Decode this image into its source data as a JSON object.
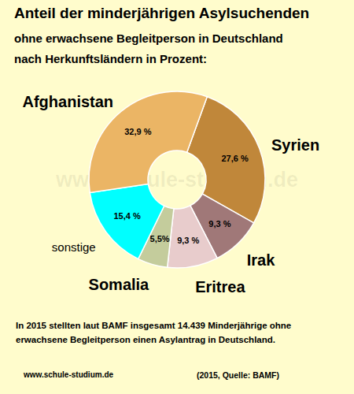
{
  "chart_data": {
    "type": "donut",
    "title": "Anteil der minderjährigen Asylsuchenden",
    "subtitle": "ohne erwachsene Begleitperson in Deutschland nach Herkunftsländern in Prozent:",
    "categories": [
      "Syrien",
      "Irak",
      "Eritrea",
      "Somalia",
      "sonstige",
      "Afghanistan"
    ],
    "values": [
      27.6,
      9.3,
      9.3,
      5.5,
      15.4,
      32.9
    ],
    "value_labels": [
      "27,6 %",
      "9,3 %",
      "9,3 %",
      "5,5%",
      "15,4 %",
      "32,9 %"
    ],
    "colors": [
      "#c0873a",
      "#a07878",
      "#e8cccc",
      "#c4cc9c",
      "#00ffff",
      "#ebb565"
    ],
    "data_labels": true,
    "annotations": [
      "In 2015 stellten laut BAMF insgesamt 14.439 Minderjährige ohne erwachsene Begleitperson einen Asylantrag in Deutschland.",
      "www.schule-studium.de",
      "(2015, Quelle: BAMF)",
      "www.schule-studium.de"
    ]
  }
}
